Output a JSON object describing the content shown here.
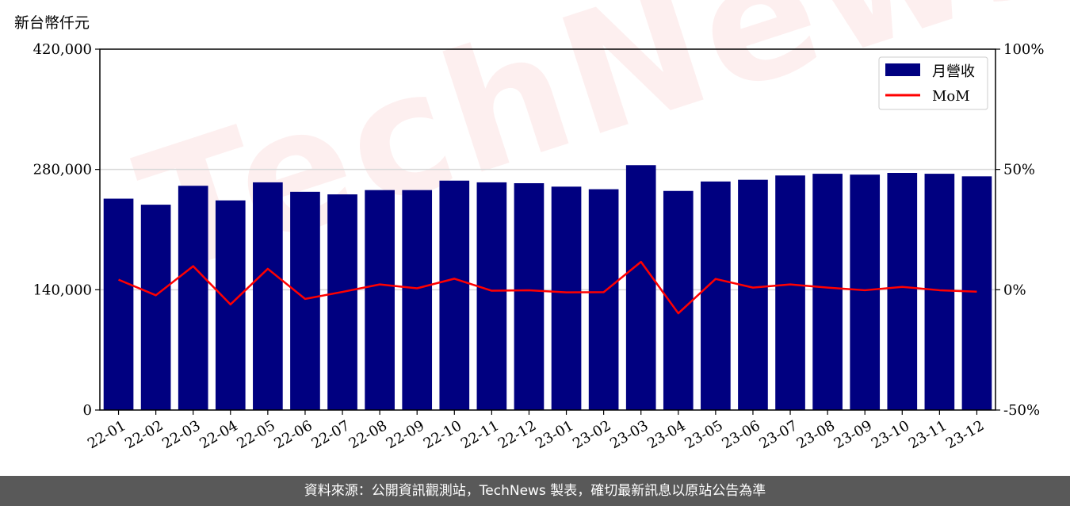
{
  "unit_label": "新台幣仟元",
  "watermark": "TechNews",
  "footer": "資料來源：公開資訊觀測站，TechNews 製表，確切最新訊息以原站公告為準",
  "colors": {
    "bar": "#000080",
    "line": "#ff0000",
    "grid": "#d9d9d9",
    "footer_bg": "#595959"
  },
  "chart_data": {
    "type": "bar",
    "title": "",
    "xlabel": "",
    "ylabel": "",
    "categories": [
      "22-01",
      "22-02",
      "22-03",
      "22-04",
      "22-05",
      "22-06",
      "22-07",
      "22-08",
      "22-09",
      "22-10",
      "22-11",
      "22-12",
      "23-01",
      "23-02",
      "23-03",
      "23-04",
      "23-05",
      "23-06",
      "23-07",
      "23-08",
      "23-09",
      "23-10",
      "23-11",
      "23-12"
    ],
    "series": [
      {
        "name": "月營收",
        "type": "bar",
        "axis": "left",
        "values": [
          246000,
          239000,
          261000,
          244000,
          265000,
          254000,
          251000,
          256000,
          256000,
          267000,
          265000,
          264000,
          260000,
          257000,
          285000,
          255000,
          266000,
          268000,
          273000,
          275000,
          274000,
          276000,
          275000,
          272000
        ]
      },
      {
        "name": "MoM",
        "type": "line",
        "axis": "right",
        "unit": "%",
        "values": [
          4.2,
          -2.3,
          9.8,
          -6.1,
          8.7,
          -3.8,
          -0.9,
          2.2,
          0.6,
          4.6,
          -0.4,
          -0.2,
          -1.1,
          -1.0,
          11.6,
          -9.8,
          4.5,
          0.9,
          2.2,
          0.9,
          -0.2,
          1.2,
          -0.2,
          -0.8
        ]
      }
    ],
    "y_left": {
      "lim": [
        0,
        420000
      ],
      "ticks": [
        0,
        140000,
        280000,
        420000
      ],
      "tick_labels": [
        "0",
        "140,000",
        "280,000",
        "420,000"
      ]
    },
    "y_right": {
      "lim": [
        -50,
        100
      ],
      "ticks": [
        -50,
        0,
        50,
        100
      ],
      "tick_labels": [
        "-50%",
        "0%",
        "50%",
        "100%"
      ]
    },
    "grid": "horizontal",
    "legend": {
      "placement": "top-right",
      "entries": [
        "月營收",
        "MoM"
      ]
    }
  }
}
